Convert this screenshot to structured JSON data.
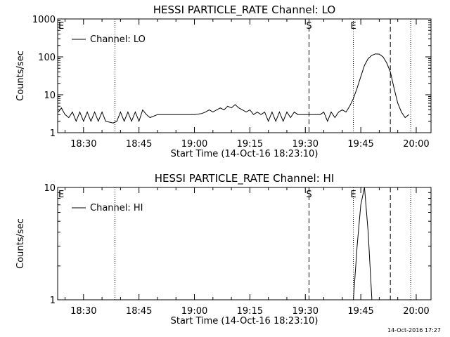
{
  "footer_timestamp": "14-Oct-2016 17:27",
  "chart_data": [
    {
      "type": "line",
      "title": "HESSI PARTICLE_RATE Channel: LO",
      "xlabel": "Start Time (14-Oct-16 18:23:10)",
      "ylabel": "Counts/sec",
      "yscale": "log",
      "ylim": [
        1,
        1000
      ],
      "y_tick_labels": [
        "1",
        "10",
        "100",
        "1000"
      ],
      "xlim": [
        "18:23",
        "20:04"
      ],
      "x_tick_labels": [
        "18:30",
        "18:45",
        "19:00",
        "19:15",
        "19:30",
        "19:45",
        "20:00"
      ],
      "legend": {
        "entry": "Channel: LO",
        "placement": "top-left"
      },
      "markers": [
        {
          "label": "E",
          "time": "18:23:10",
          "style": "solid"
        },
        {
          "label": "",
          "time": "18:38:30",
          "style": "dotted"
        },
        {
          "label": "S",
          "time": "19:31:00",
          "style": "dashed"
        },
        {
          "label": "E",
          "time": "19:43:00",
          "style": "dotted"
        },
        {
          "label": "",
          "time": "19:53:00",
          "style": "dashed"
        },
        {
          "label": "",
          "time": "19:58:30",
          "style": "dotted"
        }
      ],
      "series": [
        {
          "name": "Channel: LO",
          "x": [
            "18:23:10",
            "18:24",
            "18:25",
            "18:26",
            "18:27",
            "18:28",
            "18:29",
            "18:30",
            "18:31",
            "18:32",
            "18:33",
            "18:34",
            "18:35",
            "18:36",
            "18:38",
            "18:39",
            "18:40",
            "18:41",
            "18:42",
            "18:43",
            "18:44",
            "18:45",
            "18:46",
            "18:47",
            "18:48",
            "18:50",
            "18:55",
            "19:00",
            "19:02",
            "19:03",
            "19:04",
            "19:05",
            "19:06",
            "19:07",
            "19:08",
            "19:09",
            "19:10",
            "19:11",
            "19:12",
            "19:13",
            "19:14",
            "19:15",
            "19:16",
            "19:17",
            "19:18",
            "19:19",
            "19:20",
            "19:21",
            "19:22",
            "19:23",
            "19:24",
            "19:25",
            "19:26",
            "19:27",
            "19:28",
            "19:29",
            "19:30",
            "19:32",
            "19:34",
            "19:35",
            "19:36",
            "19:37",
            "19:38",
            "19:39",
            "19:40",
            "19:41",
            "19:42",
            "19:43",
            "19:44",
            "19:45",
            "19:46",
            "19:47",
            "19:48",
            "19:49",
            "19:50",
            "19:51",
            "19:52",
            "19:53",
            "19:54",
            "19:55",
            "19:56",
            "19:57",
            "19:58"
          ],
          "y": [
            3.5,
            4.5,
            3,
            2.5,
            3.5,
            2,
            3.5,
            2,
            3.5,
            2,
            3.5,
            2,
            3.5,
            2,
            1.8,
            2,
            3.5,
            2,
            3.5,
            2,
            3.5,
            2,
            4,
            3,
            2.5,
            3,
            3,
            3,
            3.2,
            3.5,
            4,
            3.5,
            4,
            4.5,
            4,
            5,
            4.5,
            5.5,
            4.5,
            4,
            3.5,
            4,
            3,
            3.5,
            3,
            3.5,
            2,
            3.5,
            2,
            3.5,
            2,
            3.5,
            2.5,
            3.5,
            3,
            3,
            3,
            3,
            3,
            3.5,
            2,
            3.5,
            2.5,
            3.5,
            4,
            3.5,
            5,
            8,
            15,
            30,
            60,
            90,
            110,
            120,
            118,
            100,
            70,
            40,
            15,
            6,
            3.5,
            2.5,
            3
          ]
        }
      ]
    },
    {
      "type": "line",
      "title": "HESSI PARTICLE_RATE Channel: HI",
      "xlabel": "Start Time (14-Oct-16 18:23:10)",
      "ylabel": "Counts/sec",
      "yscale": "log",
      "ylim": [
        1,
        10
      ],
      "y_tick_labels": [
        "1",
        "10"
      ],
      "xlim": [
        "18:23",
        "20:04"
      ],
      "x_tick_labels": [
        "18:30",
        "18:45",
        "19:00",
        "19:15",
        "19:30",
        "19:45",
        "20:00"
      ],
      "legend": {
        "entry": "Channel: HI",
        "placement": "top-left"
      },
      "markers": [
        {
          "label": "E",
          "time": "18:23:10",
          "style": "solid"
        },
        {
          "label": "",
          "time": "18:38:30",
          "style": "dotted"
        },
        {
          "label": "S",
          "time": "19:31:00",
          "style": "dashed"
        },
        {
          "label": "E",
          "time": "19:43:00",
          "style": "dotted"
        },
        {
          "label": "",
          "time": "19:53:00",
          "style": "dashed"
        },
        {
          "label": "",
          "time": "19:58:30",
          "style": "dotted"
        }
      ],
      "series": [
        {
          "name": "Channel: HI",
          "x": [
            "19:43",
            "19:44",
            "19:45",
            "19:46",
            "19:47",
            "19:48"
          ],
          "y": [
            1,
            3,
            7,
            10,
            4,
            1
          ]
        }
      ]
    }
  ]
}
